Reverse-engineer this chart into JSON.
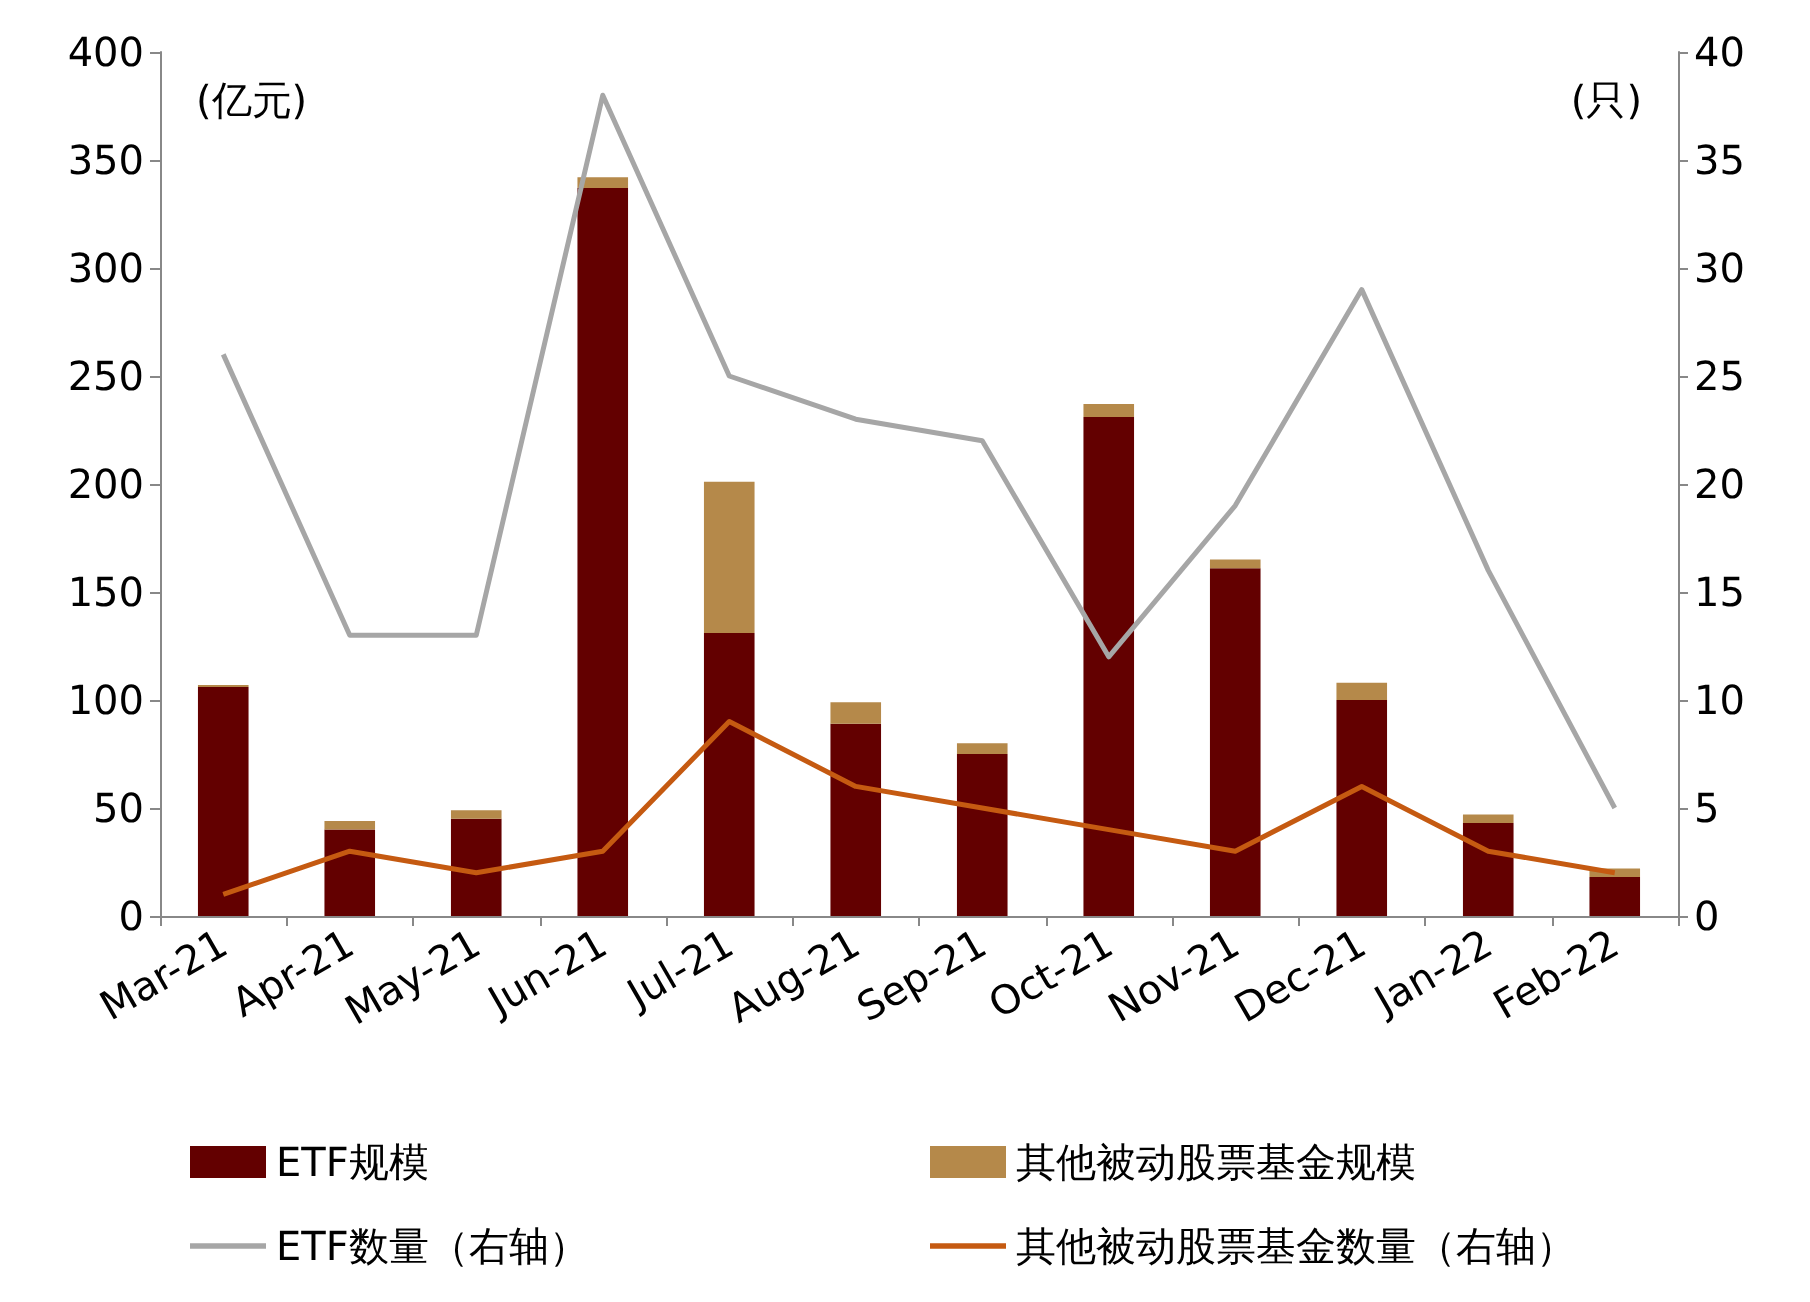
{
  "chart_data": {
    "type": "bar",
    "stacked": true,
    "ylabel": "(亿元)",
    "y2label": "(只)",
    "categories": [
      "Mar-21",
      "Apr-21",
      "May-21",
      "Jun-21",
      "Jul-21",
      "Aug-21",
      "Sep-21",
      "Oct-21",
      "Nov-21",
      "Dec-21",
      "Jan-22",
      "Feb-22"
    ],
    "series": [
      {
        "name": "ETF规模",
        "color": "#630000",
        "values": [
          106,
          40,
          45,
          337,
          131,
          89,
          75,
          231,
          161,
          100,
          43,
          18
        ]
      },
      {
        "name": "其他被动股票基金规模",
        "color": "#b5894a",
        "values": [
          1,
          4,
          4,
          5,
          70,
          10,
          5,
          6,
          4,
          8,
          4,
          4
        ]
      },
      {
        "name": "ETF数量（右轴）",
        "type": "line",
        "axis": "y2",
        "color": "#a6a6a6",
        "values": [
          26,
          13,
          13,
          38,
          25,
          23,
          22,
          12,
          19,
          29,
          16,
          5
        ]
      },
      {
        "name": "其他被动股票基金数量（右轴）",
        "type": "line",
        "axis": "y2",
        "color": "#c55a11",
        "values": [
          1,
          3,
          2,
          3,
          9,
          6,
          5,
          4,
          3,
          6,
          3,
          2
        ]
      }
    ],
    "ylim": [
      0,
      400
    ],
    "yticks": [
      0,
      50,
      100,
      150,
      200,
      250,
      300,
      350,
      400
    ],
    "y2lim": [
      0,
      40
    ],
    "y2ticks": [
      0,
      5,
      10,
      15,
      20,
      25,
      30,
      35,
      40
    ],
    "grid": false,
    "legend": "bottom",
    "marker": "none"
  }
}
